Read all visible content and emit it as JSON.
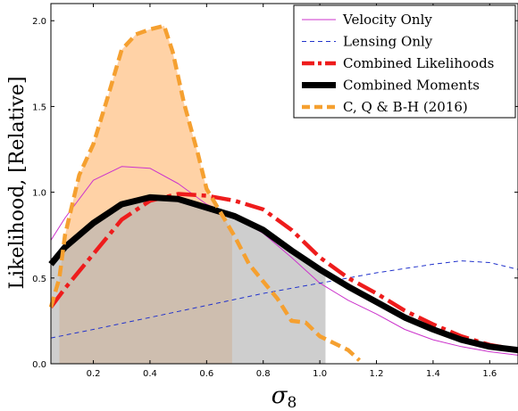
{
  "chart_data": {
    "type": "line",
    "xlabel": "σ8",
    "ylabel": "Likelihood, [Relative]",
    "xlim": [
      0.05,
      1.7
    ],
    "ylim": [
      0.0,
      2.1
    ],
    "x_ticks": [
      "0.2",
      "0.4",
      "0.6",
      "0.8",
      "1.0",
      "1.2",
      "1.4",
      "1.6"
    ],
    "y_ticks": [
      "0.0",
      "0.5",
      "1.0",
      "1.5",
      "2.0"
    ],
    "legend_position": "top-right",
    "shaded_regions": [
      {
        "series": "C, Q & B-H (2016)",
        "x_range": [
          0.08,
          0.69
        ],
        "color": "#ffd2a6"
      },
      {
        "series": "Combined Moments",
        "x_range": [
          0.05,
          1.02
        ],
        "color": "#b3b3b3"
      }
    ],
    "series": [
      {
        "name": "Velocity Only",
        "style": "solid-thin",
        "color": "#cc33cc",
        "x": [
          0.05,
          0.1,
          0.2,
          0.3,
          0.4,
          0.5,
          0.6,
          0.7,
          0.8,
          0.9,
          1.0,
          1.1,
          1.2,
          1.3,
          1.4,
          1.5,
          1.6,
          1.7
        ],
        "y": [
          0.72,
          0.85,
          1.07,
          1.15,
          1.14,
          1.05,
          0.93,
          0.86,
          0.76,
          0.62,
          0.47,
          0.37,
          0.29,
          0.2,
          0.14,
          0.1,
          0.07,
          0.05
        ]
      },
      {
        "name": "Lensing Only",
        "style": "dashed-thin",
        "color": "#2233cc",
        "x": [
          0.05,
          0.2,
          0.4,
          0.6,
          0.8,
          1.0,
          1.2,
          1.4,
          1.5,
          1.6,
          1.7
        ],
        "y": [
          0.15,
          0.2,
          0.27,
          0.34,
          0.41,
          0.47,
          0.53,
          0.58,
          0.6,
          0.59,
          0.55
        ]
      },
      {
        "name": "Combined Likelihoods",
        "style": "dashdot-thick",
        "color": "#ee1c1c",
        "x": [
          0.05,
          0.1,
          0.2,
          0.3,
          0.4,
          0.5,
          0.6,
          0.7,
          0.8,
          0.9,
          1.0,
          1.1,
          1.2,
          1.3,
          1.4,
          1.5,
          1.6,
          1.7
        ],
        "y": [
          0.33,
          0.44,
          0.64,
          0.84,
          0.95,
          0.99,
          0.98,
          0.95,
          0.9,
          0.78,
          0.62,
          0.5,
          0.41,
          0.31,
          0.23,
          0.16,
          0.11,
          0.08
        ]
      },
      {
        "name": "Combined Moments",
        "style": "solid-thick",
        "color": "#000000",
        "x": [
          0.05,
          0.1,
          0.2,
          0.3,
          0.4,
          0.5,
          0.6,
          0.7,
          0.8,
          0.9,
          1.0,
          1.1,
          1.2,
          1.3,
          1.4,
          1.5,
          1.6,
          1.7
        ],
        "y": [
          0.58,
          0.68,
          0.82,
          0.93,
          0.97,
          0.96,
          0.91,
          0.86,
          0.78,
          0.66,
          0.55,
          0.45,
          0.36,
          0.27,
          0.2,
          0.14,
          0.1,
          0.08
        ]
      },
      {
        "name": "C, Q & B-H (2016)",
        "style": "dashed-thick",
        "color": "#f5a030",
        "x": [
          0.05,
          0.08,
          0.1,
          0.15,
          0.2,
          0.25,
          0.3,
          0.35,
          0.4,
          0.45,
          0.48,
          0.52,
          0.57,
          0.6,
          0.65,
          0.7,
          0.75,
          0.8,
          0.85,
          0.9,
          0.95,
          1.0,
          1.05,
          1.1,
          1.14
        ],
        "y": [
          0.33,
          0.5,
          0.75,
          1.1,
          1.28,
          1.55,
          1.83,
          1.92,
          1.95,
          1.97,
          1.82,
          1.52,
          1.22,
          1.02,
          0.88,
          0.74,
          0.58,
          0.48,
          0.38,
          0.25,
          0.24,
          0.16,
          0.12,
          0.08,
          0.02
        ]
      }
    ]
  }
}
